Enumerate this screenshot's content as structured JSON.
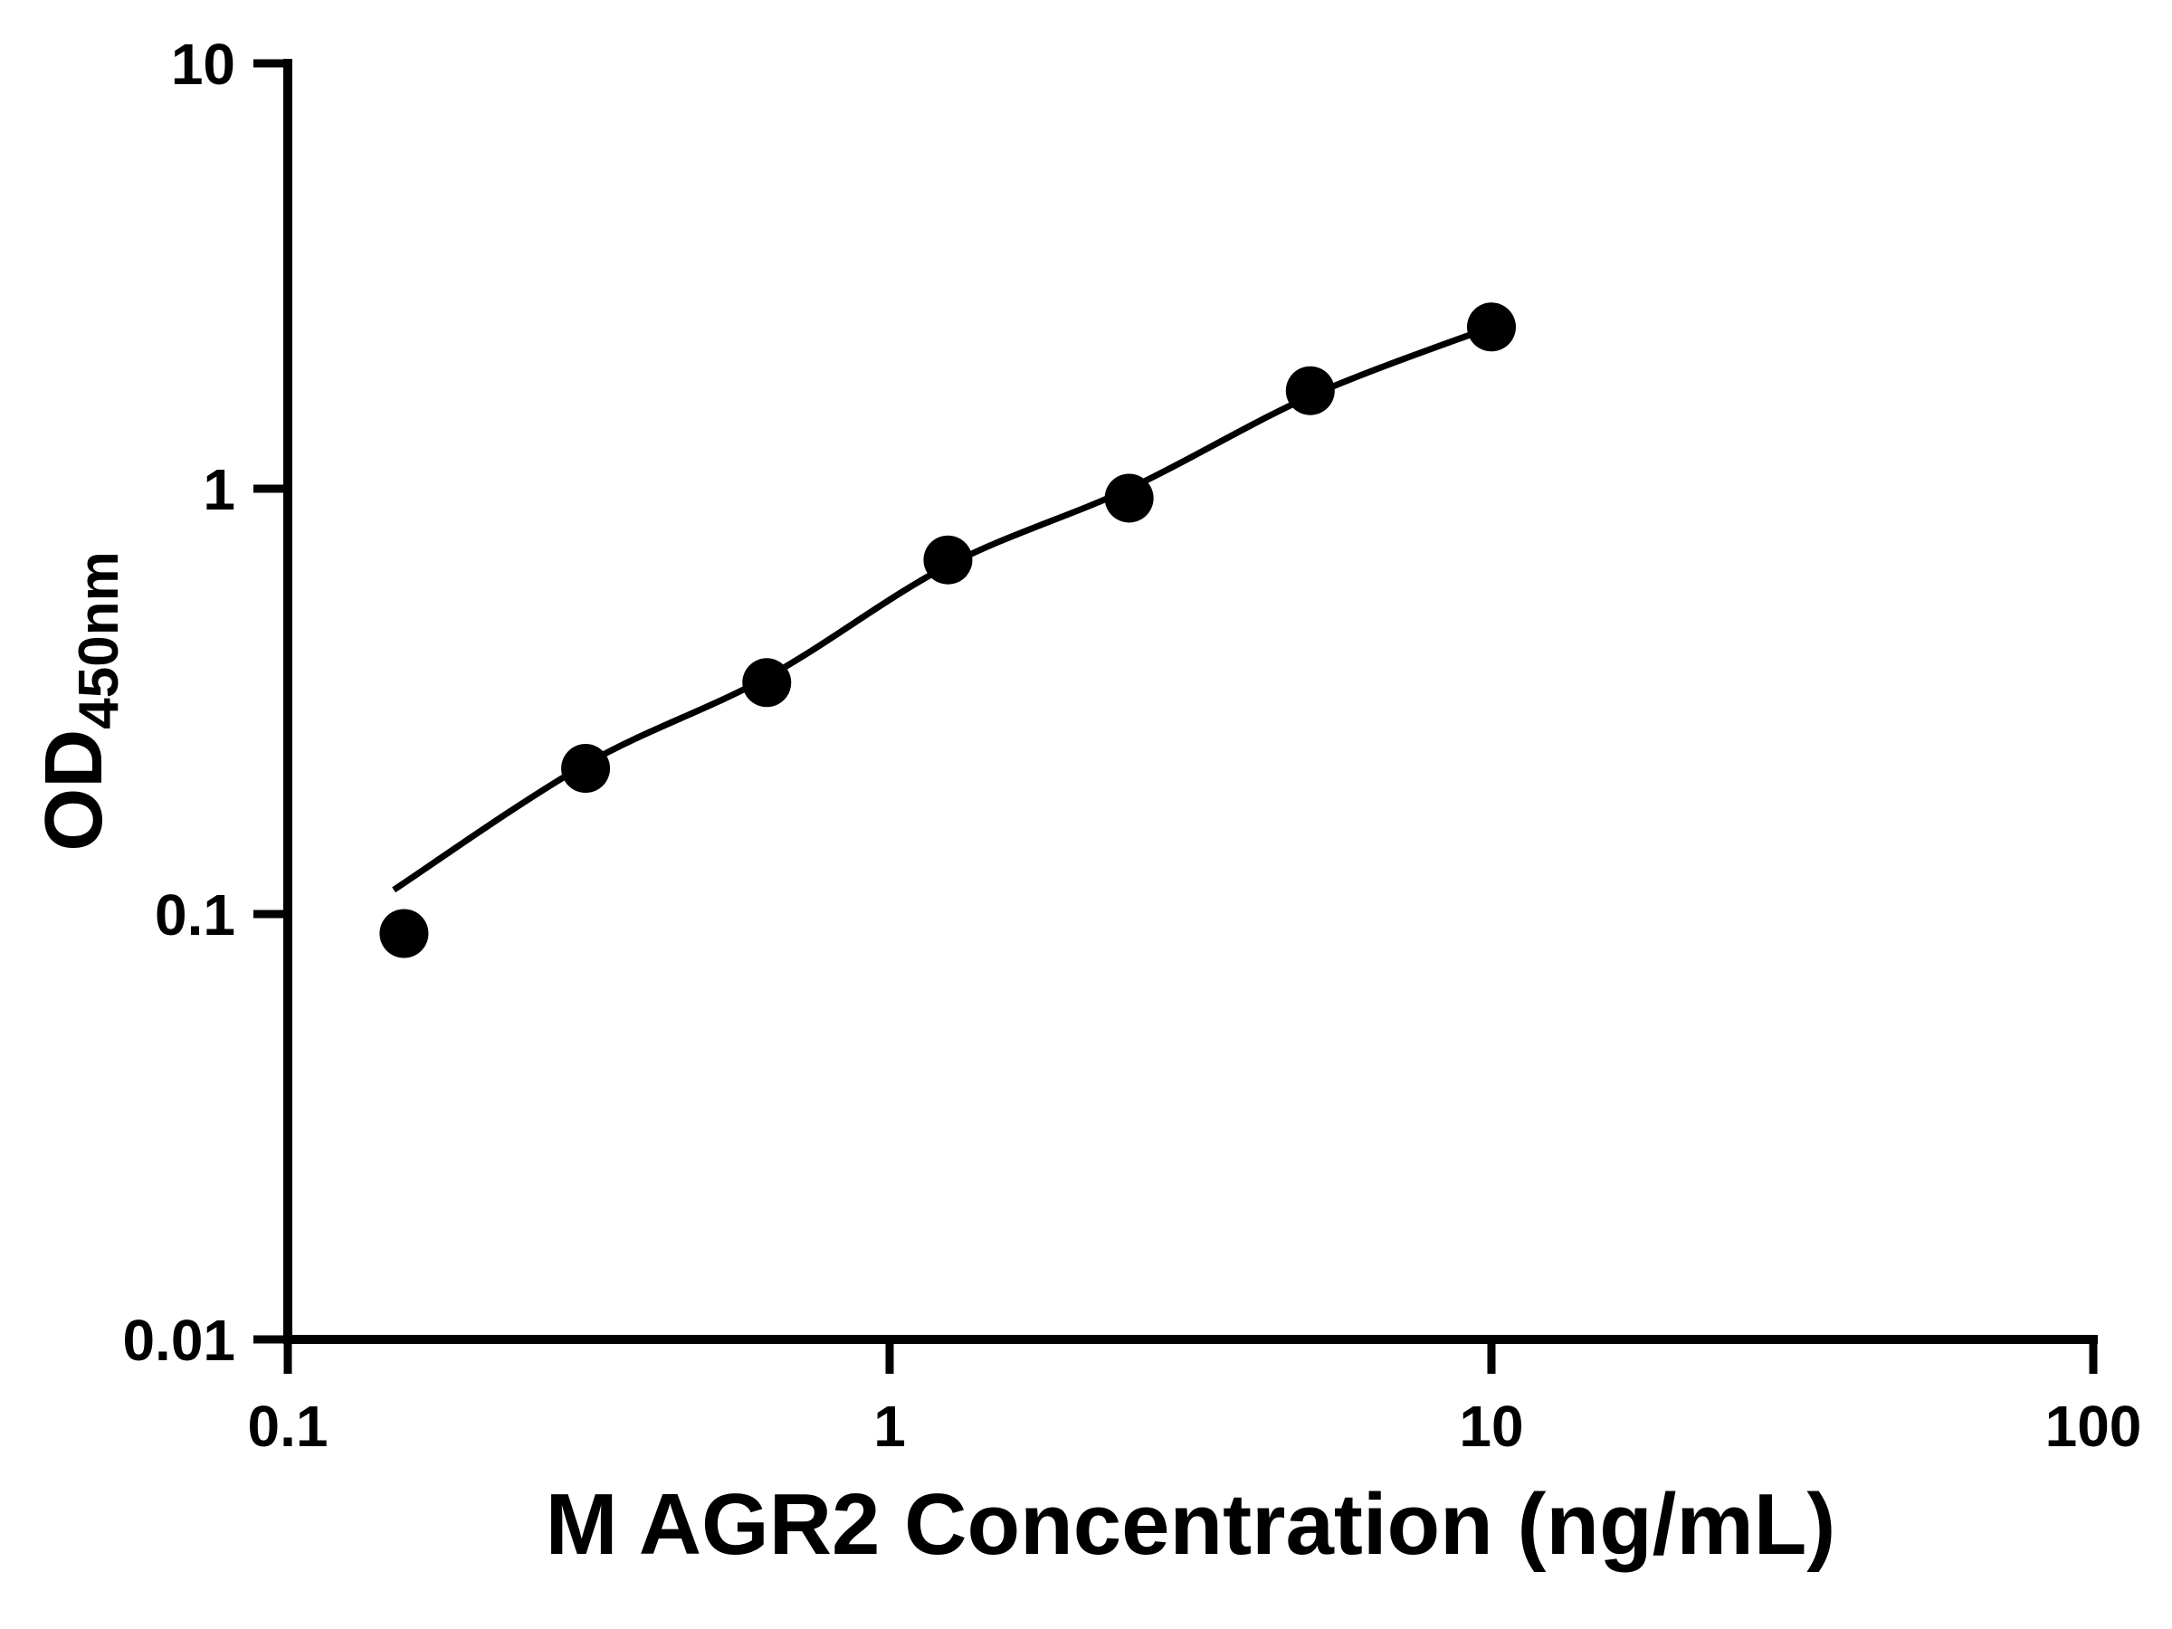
{
  "chart_data": {
    "type": "scatter",
    "title": "",
    "xlabel": "M AGR2 Concentration (ng/mL)",
    "ylabel": "OD450nm",
    "ylabel_main": "OD",
    "ylabel_sub": "450nm",
    "x_scale": "log",
    "y_scale": "log",
    "xlim": [
      0.1,
      100
    ],
    "ylim": [
      0.01,
      10
    ],
    "x_ticks": [
      0.1,
      1,
      10,
      100
    ],
    "x_tick_labels": [
      "0.1",
      "1",
      "10",
      "100"
    ],
    "y_ticks": [
      0.01,
      0.1,
      1,
      10
    ],
    "y_tick_labels": [
      "0.01",
      "0.1",
      "1",
      "10"
    ],
    "grid": false,
    "legend": "none",
    "points": [
      {
        "x": 0.156,
        "y": 0.09
      },
      {
        "x": 0.3125,
        "y": 0.22
      },
      {
        "x": 0.625,
        "y": 0.35
      },
      {
        "x": 1.25,
        "y": 0.68
      },
      {
        "x": 2.5,
        "y": 0.95
      },
      {
        "x": 5,
        "y": 1.7
      },
      {
        "x": 10,
        "y": 2.4
      }
    ],
    "fit_curve": [
      {
        "x": 0.15,
        "y": 0.114
      },
      {
        "x": 0.3125,
        "y": 0.225
      },
      {
        "x": 0.625,
        "y": 0.36
      },
      {
        "x": 1.25,
        "y": 0.66
      },
      {
        "x": 2.5,
        "y": 1.0
      },
      {
        "x": 5,
        "y": 1.65
      },
      {
        "x": 10,
        "y": 2.4
      }
    ],
    "colors": {
      "background": "#ffffff",
      "axis": "#000000",
      "points": "#000000",
      "line": "#000000",
      "text": "#000000"
    }
  }
}
